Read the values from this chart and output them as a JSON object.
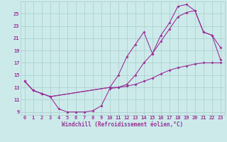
{
  "xlabel": "Windchill (Refroidissement éolien,°C)",
  "bg_color": "#cceaea",
  "grid_color": "#aacccc",
  "line_color": "#993399",
  "xlim": [
    -0.5,
    23.5
  ],
  "ylim": [
    8.5,
    27.0
  ],
  "yticks": [
    9,
    11,
    13,
    15,
    17,
    19,
    21,
    23,
    25
  ],
  "xticks": [
    0,
    1,
    2,
    3,
    4,
    5,
    6,
    7,
    8,
    9,
    10,
    11,
    12,
    13,
    14,
    15,
    16,
    17,
    18,
    19,
    20,
    21,
    22,
    23
  ],
  "line1_x": [
    0,
    1,
    2,
    3,
    4,
    5,
    6,
    7,
    8,
    9,
    10,
    11,
    12,
    13,
    14,
    15,
    16,
    17,
    18,
    19,
    20,
    21,
    22,
    23
  ],
  "line1_y": [
    14.0,
    12.5,
    12.0,
    11.5,
    9.5,
    9.0,
    9.0,
    9.0,
    9.2,
    10.0,
    12.8,
    13.0,
    13.2,
    13.5,
    14.0,
    14.5,
    15.2,
    15.8,
    16.2,
    16.5,
    16.8,
    17.0,
    17.0,
    17.0
  ],
  "line2_x": [
    0,
    1,
    2,
    3,
    10,
    11,
    12,
    13,
    14,
    15,
    16,
    17,
    18,
    19,
    20,
    21,
    22,
    23
  ],
  "line2_y": [
    14.0,
    12.5,
    12.0,
    11.5,
    13.0,
    15.0,
    18.0,
    20.0,
    22.0,
    18.5,
    21.5,
    23.5,
    26.2,
    26.5,
    25.5,
    22.0,
    21.5,
    19.5
  ],
  "line3_x": [
    0,
    1,
    2,
    3,
    10,
    11,
    12,
    13,
    14,
    15,
    16,
    17,
    18,
    19,
    20,
    21,
    22,
    23
  ],
  "line3_y": [
    14.0,
    12.5,
    12.0,
    11.5,
    13.0,
    13.0,
    13.5,
    15.0,
    17.0,
    18.5,
    20.5,
    22.5,
    24.5,
    25.2,
    25.5,
    22.0,
    21.5,
    17.5
  ]
}
